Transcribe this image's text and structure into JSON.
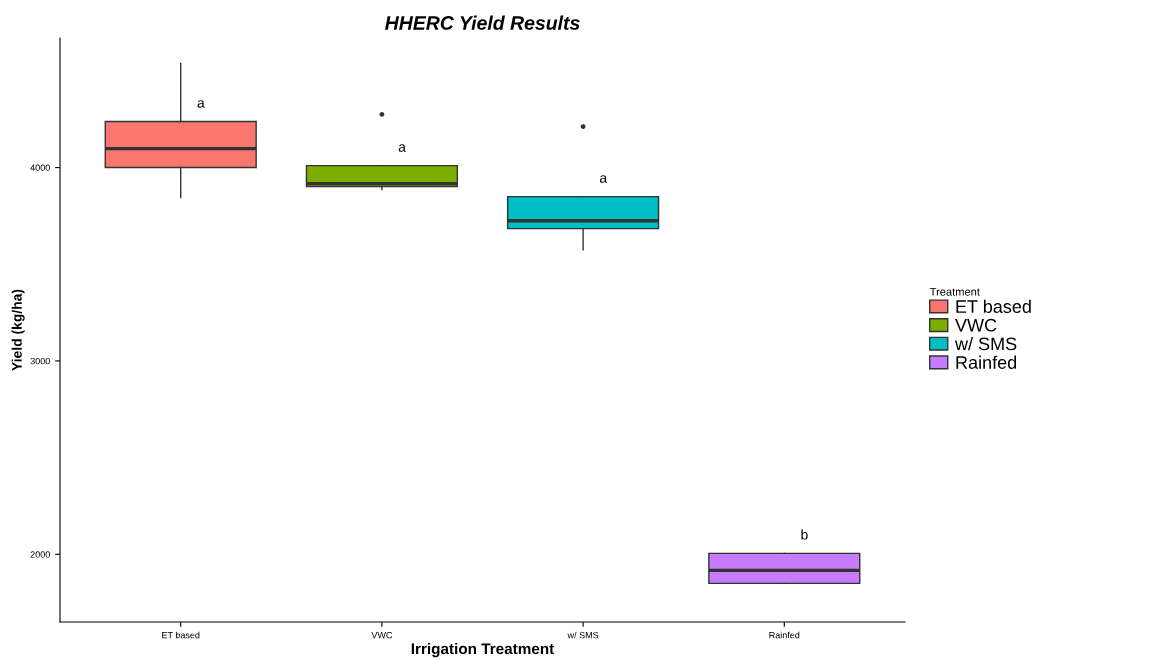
{
  "chart_data": {
    "type": "box",
    "title": "HHERC Yield Results",
    "xlabel": "Irrigation Treatment",
    "ylabel": "Yield (kg/ha)",
    "legend_title": "Treatment",
    "categories": [
      "ET based",
      "VWC",
      "w/ SMS",
      "Rainfed"
    ],
    "series": [
      {
        "name": "ET based",
        "color": "#f8766d",
        "boxes": [
          {
            "low": 3845,
            "q1": 4000,
            "median": 4098,
            "q3": 4238,
            "high": 4539
          },
          null,
          null,
          null
        ]
      },
      {
        "name": "VWC",
        "color": "#7cae00",
        "boxes": [
          null,
          {
            "low": 3886,
            "q1": 3902,
            "median": 3917,
            "q3": 4010,
            "high": 4010,
            "outliers": [
              4275
            ]
          },
          null,
          null
        ]
      },
      {
        "name": "w/ SMS",
        "color": "#00bfc4",
        "boxes": [
          null,
          null,
          {
            "low": 3575,
            "q1": 3684,
            "median": 3725,
            "q3": 3850,
            "high": 3850,
            "outliers": [
              4212
            ]
          },
          null
        ]
      },
      {
        "name": "Rainfed",
        "color": "#c77cff",
        "boxes": [
          null,
          null,
          null,
          {
            "low": 1850,
            "q1": 1850,
            "median": 1917,
            "q3": 2005,
            "high": 2005
          }
        ]
      }
    ],
    "annotations": [
      "a",
      "a",
      "a",
      "b"
    ],
    "ylim": [
      1650,
      4670
    ],
    "yticks": [
      2000,
      3000,
      4000
    ],
    "grid": false,
    "legend": "right"
  }
}
